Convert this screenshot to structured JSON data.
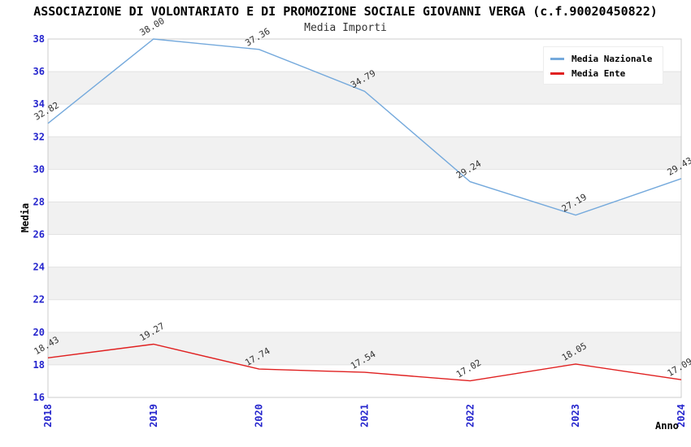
{
  "header": {
    "title": "ASSOCIAZIONE DI VOLONTARIATO E DI PROMOZIONE SOCIALE GIOVANNI VERGA (c.f.90020450822)",
    "subtitle": "Media Importi"
  },
  "legend": {
    "items": [
      {
        "label": "Media Nazionale",
        "color": "#74a9dc"
      },
      {
        "label": "Media Ente",
        "color": "#e02020"
      }
    ]
  },
  "axes": {
    "y_title": "Media",
    "x_title": "Anno",
    "y_ticks": [
      "16",
      "18",
      "20",
      "22",
      "24",
      "26",
      "28",
      "30",
      "32",
      "34",
      "36",
      "38"
    ],
    "x_ticks": [
      "2018",
      "2019",
      "2020",
      "2021",
      "2022",
      "2023",
      "2024"
    ],
    "tick_color": "#2525cd"
  },
  "chart_data": {
    "type": "line",
    "title": "ASSOCIAZIONE DI VOLONTARIATO E DI PROMOZIONE SOCIALE GIOVANNI VERGA (c.f.90020450822)",
    "subtitle": "Media Importi",
    "x": [
      "2018",
      "2019",
      "2020",
      "2021",
      "2022",
      "2023",
      "2024"
    ],
    "series": [
      {
        "name": "Media Nazionale",
        "color": "#74a9dc",
        "values": [
          32.82,
          38.0,
          37.36,
          34.79,
          29.24,
          27.19,
          29.43
        ]
      },
      {
        "name": "Media Ente",
        "color": "#e02020",
        "values": [
          18.43,
          19.27,
          17.74,
          17.54,
          17.02,
          18.05,
          17.09
        ]
      }
    ],
    "xlabel": "Anno",
    "ylabel": "Media",
    "ylim": [
      16,
      38
    ],
    "ytick_step": 2,
    "grid": true,
    "bands": "alternating gray every 2 units (gray: 18-20, 22-24, 26-28, 30-32, 34-36)",
    "legend_position": "top-right",
    "data_label_color": "#333333",
    "band_fill": "#f1f1f1",
    "grid_color": "#e3e3e3",
    "border_color": "#cccccc"
  }
}
